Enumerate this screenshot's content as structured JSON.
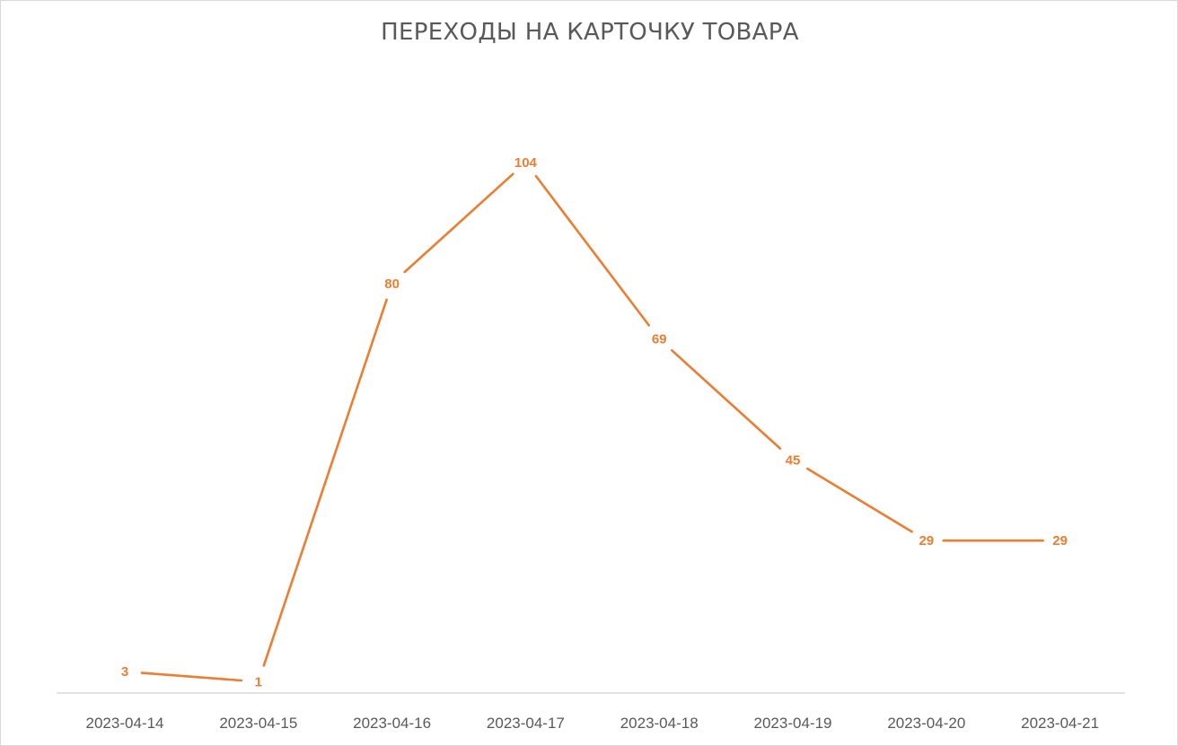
{
  "chart_data": {
    "type": "line",
    "title": "ПЕРЕХОДЫ НА КАРТОЧКУ ТОВАРА",
    "categories": [
      "2023-04-14",
      "2023-04-15",
      "2023-04-16",
      "2023-04-17",
      "2023-04-18",
      "2023-04-19",
      "2023-04-20",
      "2023-04-21"
    ],
    "series": [
      {
        "values": [
          3,
          1,
          80,
          104,
          69,
          45,
          29,
          29
        ],
        "color": "#ed7d31"
      }
    ],
    "xlabel": "",
    "ylabel": "",
    "ylim": [
      0,
      104
    ],
    "grid": false,
    "data_labels": true,
    "legend": "none"
  }
}
